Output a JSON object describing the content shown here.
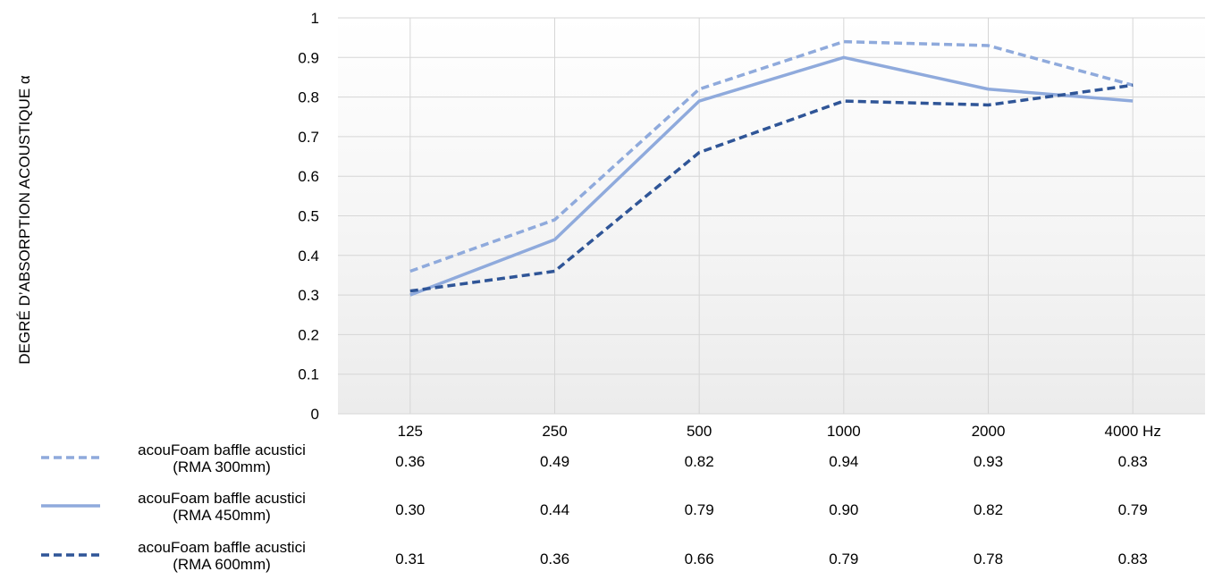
{
  "chart_data": {
    "type": "line",
    "ylabel": "DEGRÉ D’ABSORPTION ACOUSTIQUE α",
    "categories": [
      "125",
      "250",
      "500",
      "1000",
      "2000",
      "4000 Hz"
    ],
    "ylim": [
      0,
      1
    ],
    "yticks": [
      "0",
      "0.1",
      "0.2",
      "0.3",
      "0.4",
      "0.5",
      "0.6",
      "0.7",
      "0.8",
      "0.9",
      "1"
    ],
    "grid": true,
    "legend": "bottom-left data table",
    "series": [
      {
        "name_line1": "acouFoam baffle acustici",
        "name_line2": "(RMA 300mm)",
        "values": [
          0.36,
          0.49,
          0.82,
          0.94,
          0.93,
          0.83
        ],
        "labels": [
          "0.36",
          "0.49",
          "0.82",
          "0.94",
          "0.93",
          "0.83"
        ],
        "color": "#8faadc",
        "dash": "dashed"
      },
      {
        "name_line1": "acouFoam baffle acustici",
        "name_line2": "(RMA 450mm)",
        "values": [
          0.3,
          0.44,
          0.79,
          0.9,
          0.82,
          0.79
        ],
        "labels": [
          "0.30",
          "0.44",
          "0.79",
          "0.90",
          "0.82",
          "0.79"
        ],
        "color": "#8faadc",
        "dash": "solid"
      },
      {
        "name_line1": "acouFoam baffle acustici",
        "name_line2": "(RMA 600mm)",
        "values": [
          0.31,
          0.36,
          0.66,
          0.79,
          0.78,
          0.83
        ],
        "labels": [
          "0.31",
          "0.36",
          "0.66",
          "0.79",
          "0.78",
          "0.83"
        ],
        "color": "#2f5597",
        "dash": "dashed"
      }
    ]
  }
}
